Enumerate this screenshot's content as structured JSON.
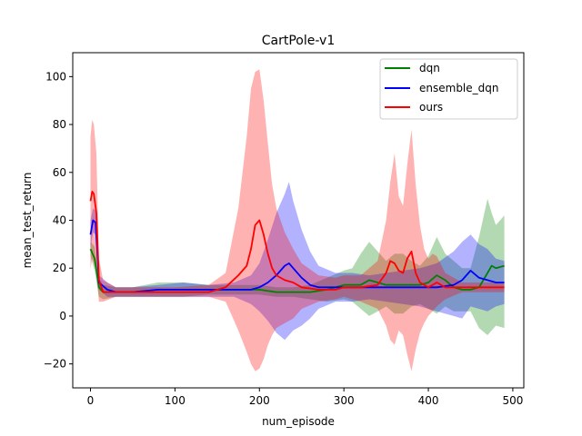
{
  "chart_data": {
    "type": "line",
    "title": "CartPole-v1",
    "xlabel": "num_episode",
    "ylabel": "mean_test_return",
    "xlim": [
      -21,
      513
    ],
    "ylim": [
      -30,
      110
    ],
    "xticks": [
      0,
      100,
      200,
      300,
      400,
      500
    ],
    "yticks": [
      -20,
      0,
      20,
      40,
      60,
      80,
      100
    ],
    "grid": false,
    "legend_position": "top-right",
    "series": [
      {
        "name": "dqn",
        "color": "#008000",
        "x": [
          0,
          5,
          10,
          15,
          30,
          50,
          80,
          110,
          140,
          170,
          200,
          220,
          240,
          260,
          280,
          300,
          310,
          320,
          330,
          340,
          350,
          360,
          370,
          380,
          390,
          400,
          410,
          420,
          430,
          440,
          450,
          460,
          470,
          475,
          480,
          490
        ],
        "y": [
          28,
          24,
          12,
          10,
          10,
          10,
          11,
          11,
          11,
          11,
          11,
          10,
          10,
          10,
          11,
          13,
          13,
          13,
          15,
          14,
          13,
          13,
          13,
          13,
          13,
          14,
          17,
          15,
          12,
          11,
          11,
          12,
          18,
          21,
          20,
          21
        ],
        "upper": [
          31,
          29,
          16,
          13,
          12,
          12,
          14,
          14,
          13,
          13,
          13,
          12,
          12,
          13,
          16,
          19,
          20,
          26,
          31,
          27,
          23,
          26,
          26,
          23,
          21,
          25,
          33,
          26,
          23,
          20,
          20,
          33,
          49,
          43,
          38,
          42
        ],
        "lower": [
          25,
          19,
          8,
          7,
          8,
          8,
          8,
          8,
          9,
          9,
          9,
          8,
          8,
          7,
          6,
          7,
          6,
          3,
          0,
          2,
          4,
          1,
          1,
          4,
          5,
          3,
          1,
          4,
          2,
          2,
          2,
          -5,
          -8,
          -6,
          -4,
          -5
        ]
      },
      {
        "name": "ensemble_dqn",
        "color": "#0000ff",
        "x": [
          0,
          3,
          6,
          10,
          20,
          30,
          50,
          80,
          110,
          140,
          170,
          190,
          200,
          210,
          220,
          230,
          235,
          240,
          250,
          260,
          270,
          290,
          310,
          330,
          350,
          370,
          390,
          410,
          430,
          440,
          450,
          460,
          470,
          480,
          490
        ],
        "y": [
          34,
          40,
          39,
          14,
          11,
          10,
          10,
          11,
          11,
          11,
          11,
          11,
          12,
          14,
          17,
          21,
          22,
          20,
          16,
          13,
          12,
          12,
          12,
          12,
          12,
          12,
          12,
          12,
          13,
          15,
          19,
          16,
          15,
          14,
          14
        ],
        "upper": [
          40,
          45,
          44,
          17,
          14,
          12,
          12,
          13,
          14,
          13,
          14,
          17,
          22,
          32,
          43,
          51,
          56,
          48,
          36,
          27,
          21,
          18,
          18,
          17,
          18,
          19,
          20,
          22,
          27,
          31,
          34,
          30,
          28,
          24,
          23
        ],
        "lower": [
          28,
          35,
          34,
          11,
          8,
          8,
          8,
          8,
          8,
          8,
          8,
          5,
          2,
          -2,
          -7,
          -10,
          -8,
          -6,
          -4,
          -1,
          3,
          6,
          6,
          7,
          6,
          5,
          4,
          2,
          0,
          -1,
          4,
          3,
          2,
          4,
          5
        ]
      },
      {
        "name": "ours",
        "color": "#ff0000",
        "x": [
          0,
          2,
          4,
          7,
          10,
          15,
          30,
          60,
          100,
          140,
          160,
          175,
          185,
          190,
          195,
          200,
          205,
          210,
          215,
          220,
          230,
          240,
          250,
          270,
          290,
          300,
          320,
          340,
          350,
          355,
          360,
          365,
          370,
          375,
          380,
          385,
          390,
          395,
          400,
          405,
          410,
          420,
          440,
          460,
          490
        ],
        "y": [
          48,
          52,
          51,
          43,
          15,
          10,
          10,
          10,
          10,
          10,
          12,
          17,
          21,
          28,
          38,
          40,
          34,
          26,
          20,
          17,
          15,
          14,
          12,
          11,
          11,
          12,
          12,
          13,
          18,
          23,
          22,
          19,
          18,
          24,
          27,
          18,
          14,
          13,
          12,
          13,
          14,
          12,
          12,
          12,
          12
        ],
        "upper": [
          75,
          82,
          80,
          68,
          24,
          15,
          12,
          12,
          12,
          13,
          18,
          45,
          75,
          95,
          102,
          103,
          90,
          72,
          55,
          45,
          35,
          28,
          22,
          17,
          16,
          17,
          17,
          23,
          40,
          56,
          68,
          50,
          46,
          63,
          78,
          55,
          38,
          28,
          24,
          26,
          25,
          18,
          14,
          14,
          14
        ],
        "lower": [
          20,
          24,
          22,
          18,
          6,
          6,
          8,
          8,
          8,
          8,
          6,
          -6,
          -15,
          -20,
          -23,
          -22,
          -18,
          -12,
          -8,
          -5,
          -3,
          -1,
          3,
          6,
          7,
          8,
          6,
          3,
          -4,
          -10,
          -12,
          -6,
          -8,
          -16,
          -23,
          -14,
          -7,
          -3,
          0,
          2,
          4,
          7,
          10,
          10,
          10
        ]
      }
    ]
  }
}
